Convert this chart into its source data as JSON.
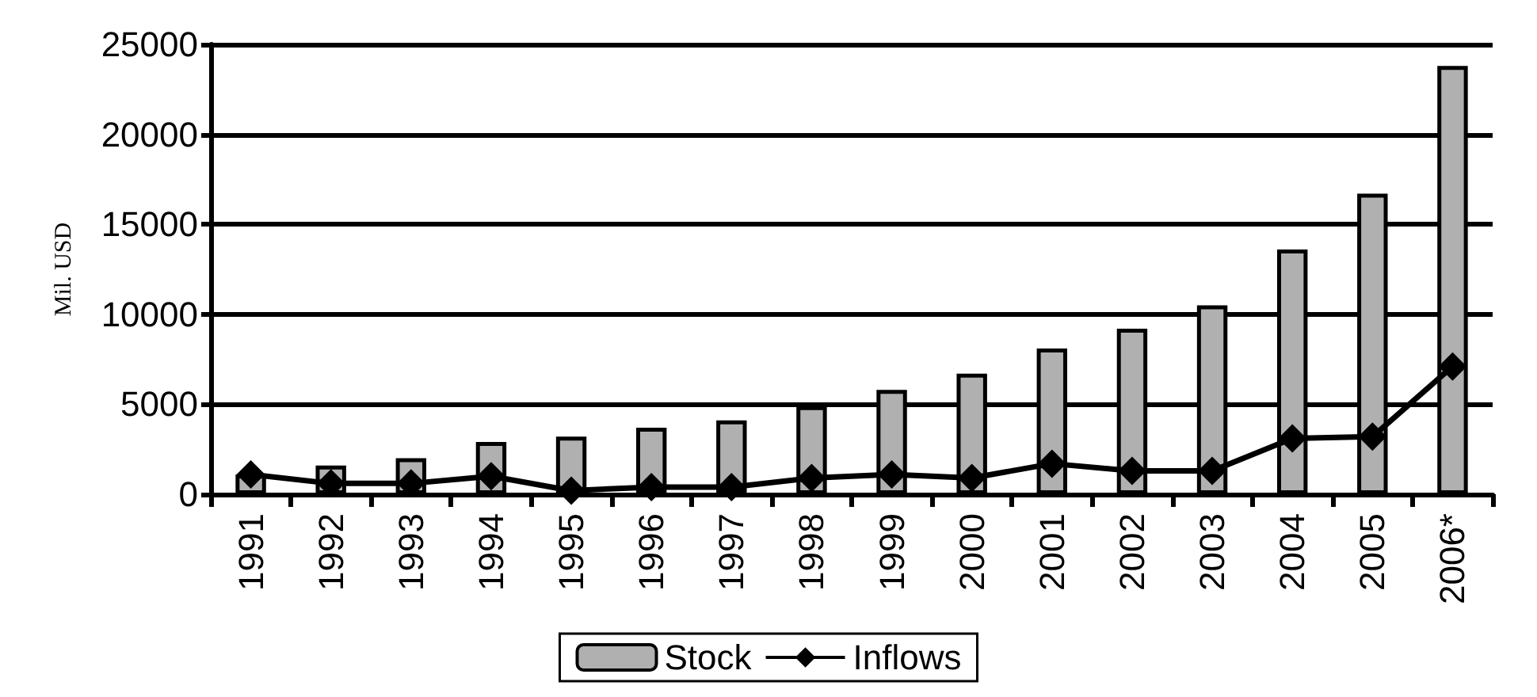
{
  "chart_data": {
    "type": "bar",
    "ylabel": "Mil. USD",
    "categories": [
      "1991",
      "1992",
      "1993",
      "1994",
      "1995",
      "1996",
      "1997",
      "1998",
      "1999",
      "2000",
      "2001",
      "2002",
      "2003",
      "2004",
      "2005",
      "2006*"
    ],
    "series": [
      {
        "name": "Stock",
        "color": "#b0b0b0",
        "values": [
          1100,
          1600,
          2000,
          2900,
          3200,
          3700,
          4100,
          4900,
          5800,
          6700,
          8100,
          9200,
          10500,
          13600,
          16700,
          23800
        ]
      },
      {
        "name": "Inflows",
        "type": "line",
        "color": "#000000",
        "marker": "diamond",
        "values": [
          1100,
          600,
          600,
          1000,
          200,
          400,
          400,
          900,
          1100,
          900,
          1700,
          1300,
          1300,
          3100,
          3200,
          7100
        ]
      }
    ],
    "ylim": [
      0,
      25000
    ],
    "yticks": [
      0,
      5000,
      10000,
      15000,
      20000,
      25000
    ],
    "grid": "y",
    "legend": "bottom"
  }
}
